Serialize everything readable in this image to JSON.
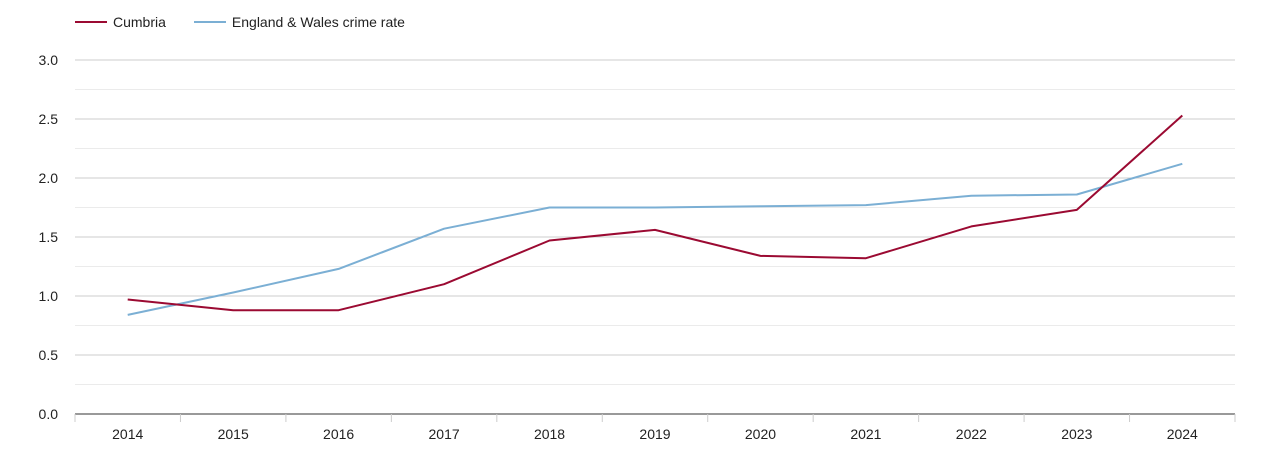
{
  "chart_data": {
    "type": "line",
    "title": "",
    "xlabel": "",
    "ylabel": "",
    "categories": [
      "2014",
      "2015",
      "2016",
      "2017",
      "2018",
      "2019",
      "2020",
      "2021",
      "2022",
      "2023",
      "2024"
    ],
    "ylim": [
      0,
      3
    ],
    "yticks": [
      "0.0",
      "0.5",
      "1.0",
      "1.5",
      "2.0",
      "2.5",
      "3.0"
    ],
    "legend_position": "top-left",
    "series": [
      {
        "name": "Cumbria",
        "color": "#9b0a32",
        "values": [
          0.97,
          0.88,
          0.88,
          1.1,
          1.47,
          1.56,
          1.34,
          1.32,
          1.59,
          1.73,
          2.53
        ]
      },
      {
        "name": "England & Wales crime rate",
        "color": "#7bafd4",
        "values": [
          0.84,
          1.03,
          1.23,
          1.57,
          1.75,
          1.75,
          1.76,
          1.77,
          1.85,
          1.86,
          2.12
        ]
      }
    ]
  }
}
